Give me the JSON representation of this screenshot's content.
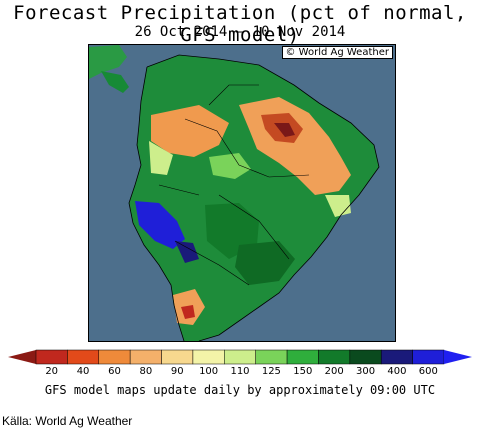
{
  "header": {
    "title": "Forecast Precipitation (pct of normal, GFS model)",
    "subtitle": "26 Oct 2014 – 10 Nov 2014"
  },
  "map": {
    "credit": "© World Ag Weather",
    "ocean_color": "#4d6f8c",
    "land_base_color": "#1e8c3a"
  },
  "legend": {
    "ticks": [
      "20",
      "40",
      "60",
      "80",
      "90",
      "100",
      "110",
      "125",
      "150",
      "200",
      "300",
      "400",
      "600"
    ],
    "colors": [
      "#c0281e",
      "#e24a1a",
      "#ef8a3a",
      "#f4b06a",
      "#f7d88e",
      "#f3f3a8",
      "#cdee8c",
      "#7ad35a",
      "#2fae3c",
      "#127a2a",
      "#0a4a1e",
      "#1a1a7a",
      "#1f1fd8"
    ]
  },
  "footer": {
    "note": "GFS model maps update daily by approximately 09:00 UTC",
    "source": "Källa: World Ag Weather"
  }
}
